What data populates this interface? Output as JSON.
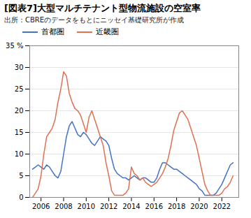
{
  "chart_data": {
    "type": "line",
    "title": "[図表7]大型マルチテナント型物流施設の空室率",
    "subtitle": "出所：CBREのデータをもとにニッセイ基礎研究所が作成",
    "legend": "top",
    "grid": true,
    "xlim": [
      2005.0,
      2023.5
    ],
    "xticks": [
      2006,
      2008,
      2010,
      2012,
      2014,
      2016,
      2018,
      2020,
      2022
    ],
    "ylim": [
      0,
      35
    ],
    "yticks": [
      0,
      5,
      10,
      15,
      20,
      25,
      30,
      {
        "value": 35,
        "label": "35 %"
      }
    ],
    "x": [
      2005.25,
      2005.5,
      2005.75,
      2006.0,
      2006.25,
      2006.5,
      2006.75,
      2007.0,
      2007.25,
      2007.5,
      2007.75,
      2008.0,
      2008.25,
      2008.5,
      2008.75,
      2009.0,
      2009.25,
      2009.5,
      2009.75,
      2010.0,
      2010.25,
      2010.5,
      2010.75,
      2011.0,
      2011.25,
      2011.5,
      2011.75,
      2012.0,
      2012.25,
      2012.5,
      2012.75,
      2013.0,
      2013.25,
      2013.5,
      2013.75,
      2014.0,
      2014.25,
      2014.5,
      2014.75,
      2015.0,
      2015.25,
      2015.5,
      2015.75,
      2016.0,
      2016.25,
      2016.5,
      2016.75,
      2017.0,
      2017.25,
      2017.5,
      2017.75,
      2018.0,
      2018.25,
      2018.5,
      2018.75,
      2019.0,
      2019.25,
      2019.5,
      2019.75,
      2020.0,
      2020.25,
      2020.5,
      2020.75,
      2021.0,
      2021.25,
      2021.5,
      2021.75,
      2022.0,
      2022.25,
      2022.5,
      2022.75,
      2023.0
    ],
    "series": [
      {
        "name": "首都圏",
        "color": "#4472C4",
        "values": [
          6.5,
          7.0,
          7.5,
          7.0,
          6.5,
          7.5,
          7.0,
          6.0,
          5.0,
          4.5,
          6.0,
          10.0,
          14.0,
          16.5,
          17.5,
          16.0,
          14.5,
          14.0,
          15.0,
          14.5,
          13.5,
          12.5,
          12.0,
          13.0,
          14.0,
          13.5,
          13.0,
          12.0,
          9.0,
          6.5,
          5.5,
          5.0,
          4.5,
          4.5,
          4.0,
          4.5,
          5.0,
          4.5,
          4.0,
          4.5,
          4.5,
          4.0,
          3.5,
          3.5,
          4.5,
          6.5,
          8.0,
          8.0,
          7.5,
          7.0,
          6.5,
          6.5,
          6.0,
          5.5,
          5.0,
          4.5,
          4.0,
          3.5,
          3.0,
          2.0,
          1.5,
          0.5,
          0.5,
          0.5,
          0.5,
          1.0,
          2.0,
          3.0,
          4.5,
          6.0,
          7.5,
          8.0
        ]
      },
      {
        "name": "近畿圏",
        "color": "#E07050",
        "values": [
          0.0,
          1.0,
          2.0,
          5.0,
          10.0,
          14.0,
          15.0,
          16.0,
          18.0,
          22.0,
          25.0,
          29.0,
          28.0,
          24.0,
          22.0,
          20.5,
          20.0,
          19.0,
          17.0,
          15.0,
          18.5,
          20.0,
          18.0,
          16.0,
          14.0,
          12.0,
          8.0,
          5.0,
          1.5,
          0.5,
          0.5,
          0.5,
          0.5,
          1.0,
          2.0,
          7.0,
          5.5,
          5.0,
          4.0,
          4.5,
          3.5,
          3.0,
          2.5,
          3.0,
          3.5,
          4.5,
          5.5,
          7.0,
          9.0,
          12.0,
          15.5,
          17.5,
          19.5,
          20.0,
          19.0,
          18.0,
          16.0,
          14.0,
          12.0,
          9.0,
          6.0,
          3.0,
          1.5,
          0.5,
          0.5,
          0.5,
          0.5,
          1.0,
          2.0,
          2.5,
          3.5,
          5.0
        ]
      }
    ]
  }
}
